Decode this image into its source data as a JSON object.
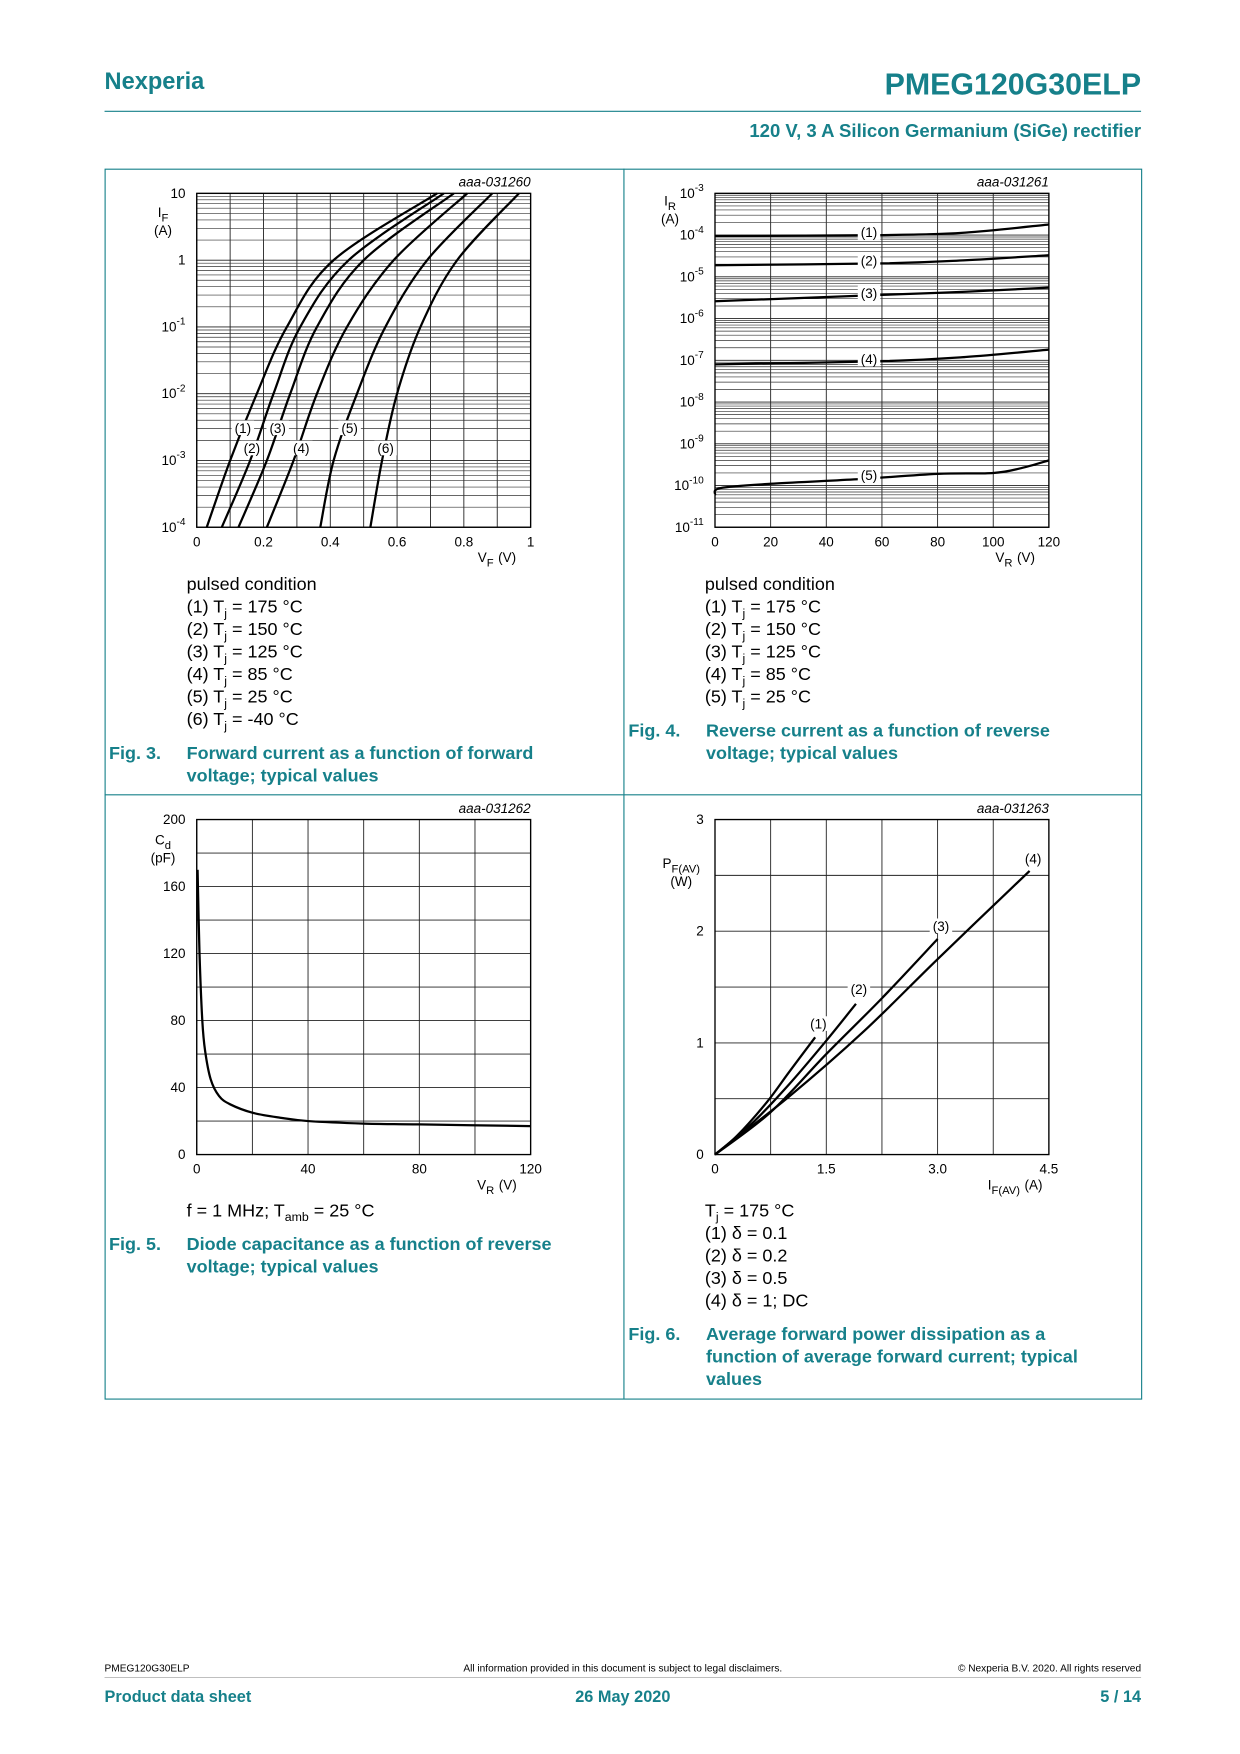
{
  "header": {
    "brand": "Nexperia",
    "product": "PMEG120G30ELP",
    "subtitle": "120 V, 3 A Silicon Germanium (SiGe) rectifier"
  },
  "chart_data": [
    {
      "type": "line",
      "id": "aaa-031260",
      "figure": "Fig. 3.",
      "caption": "Forward current as a function of forward voltage; typical values",
      "notes": [
        "pulsed condition",
        "(1) Tj = 175 °C",
        "(2) Tj = 150 °C",
        "(3) Tj = 125 °C",
        "(4) Tj = 85 °C",
        "(5) Tj = 25 °C",
        "(6) Tj = -40 °C"
      ],
      "x_label": {
        "symbol": "V",
        "sub": "F",
        "unit": "(V)"
      },
      "y_label": {
        "symbol": "I",
        "sub": "F",
        "unit": "(A)"
      },
      "xlim": [
        0,
        1
      ],
      "ylim": [
        0.0001,
        10
      ],
      "yscale": "log",
      "grid": true,
      "x_minor_grid": true,
      "y_minor_grid": true,
      "color": "#000000",
      "xticks": [
        0,
        0.2,
        0.4,
        0.6,
        0.8,
        1
      ],
      "yticks": [
        {
          "value": 0.0001,
          "label": "10-4"
        },
        {
          "value": 0.001,
          "label": "10-3"
        },
        {
          "value": 0.01,
          "label": "10-2"
        },
        {
          "value": 0.1,
          "label": "10-1"
        },
        1,
        10
      ],
      "series": [
        {
          "name": "(1)",
          "x": [
            0.03,
            0.1,
            0.18,
            0.27,
            0.41,
            0.72
          ],
          "values": [
            0.0001,
            0.001,
            0.01,
            0.1,
            1,
            10
          ]
        },
        {
          "name": "(2)",
          "x": [
            0.075,
            0.16,
            0.23,
            0.31,
            0.455,
            0.74
          ],
          "values": [
            0.0001,
            0.001,
            0.01,
            0.1,
            1,
            10
          ]
        },
        {
          "name": "(3)",
          "x": [
            0.125,
            0.21,
            0.28,
            0.36,
            0.5,
            0.77
          ],
          "values": [
            0.0001,
            0.001,
            0.01,
            0.1,
            1,
            10
          ]
        },
        {
          "name": "(4)",
          "x": [
            0.21,
            0.29,
            0.36,
            0.45,
            0.59,
            0.81
          ],
          "values": [
            0.0001,
            0.001,
            0.01,
            0.1,
            1,
            10
          ]
        },
        {
          "name": "(5)",
          "x": [
            0.37,
            0.41,
            0.48,
            0.565,
            0.69,
            0.885
          ],
          "values": [
            0.0001,
            0.001,
            0.01,
            0.1,
            1,
            10
          ]
        },
        {
          "name": "(6)",
          "x": [
            0.52,
            0.555,
            0.6,
            0.67,
            0.78,
            0.965
          ],
          "values": [
            0.0001,
            0.001,
            0.01,
            0.1,
            1,
            10
          ]
        }
      ]
    },
    {
      "type": "line",
      "id": "aaa-031261",
      "figure": "Fig. 4.",
      "caption": "Reverse current as a function of reverse voltage; typical values",
      "notes": [
        "pulsed condition",
        "(1) Tj = 175 °C",
        "(2) Tj = 150 °C",
        "(3) Tj = 125 °C",
        "(4) Tj = 85 °C",
        "(5) Tj = 25 °C"
      ],
      "x_label": {
        "symbol": "V",
        "sub": "R",
        "unit": "(V)"
      },
      "y_label": {
        "symbol": "I",
        "sub": "R",
        "unit": "(A)"
      },
      "xlim": [
        0,
        120
      ],
      "ylim": [
        1e-11,
        0.001
      ],
      "yscale": "log",
      "grid": true,
      "x_minor_grid": false,
      "y_minor_grid": true,
      "color": "#000000",
      "xticks": [
        0,
        20,
        40,
        60,
        80,
        100,
        120
      ],
      "yticks": [
        {
          "value": 1e-11,
          "label": "10-11"
        },
        {
          "value": 1e-10,
          "label": "10-10"
        },
        {
          "value": 1e-09,
          "label": "10-9"
        },
        {
          "value": 1e-08,
          "label": "10-8"
        },
        {
          "value": 1e-07,
          "label": "10-7"
        },
        {
          "value": 1e-06,
          "label": "10-6"
        },
        {
          "value": 1e-05,
          "label": "10-5"
        },
        {
          "value": 0.0001,
          "label": "10-4"
        },
        {
          "value": 0.001,
          "label": "10-3"
        }
      ],
      "series": [
        {
          "name": "(1)",
          "x": [
            0,
            60,
            90,
            120
          ],
          "values": [
            9.5e-05,
            0.0001,
            0.000115,
            0.00018
          ]
        },
        {
          "name": "(2)",
          "x": [
            0,
            60,
            90,
            120
          ],
          "values": [
            1.9e-05,
            2.1e-05,
            2.5e-05,
            3.3e-05
          ]
        },
        {
          "name": "(3)",
          "x": [
            0,
            60,
            90,
            120
          ],
          "values": [
            2.6e-06,
            3.7e-06,
            4.4e-06,
            5.5e-06
          ]
        },
        {
          "name": "(4)",
          "x": [
            0,
            60,
            90,
            120
          ],
          "values": [
            8e-08,
            9.5e-08,
            1.2e-07,
            1.8e-07
          ]
        },
        {
          "name": "(5)",
          "x": [
            0,
            2,
            20,
            50,
            80,
            100,
            110,
            120
          ],
          "values": [
            6e-11,
            8.7e-11,
            1.1e-10,
            1.4e-10,
            1.9e-10,
            2e-10,
            2.6e-10,
            4e-10
          ]
        }
      ]
    },
    {
      "type": "line",
      "id": "aaa-031262",
      "figure": "Fig. 5.",
      "caption": "Diode capacitance as a function of reverse voltage; typical values",
      "notes": [
        "f = 1 MHz; Tamb = 25 °C"
      ],
      "x_label": {
        "symbol": "V",
        "sub": "R",
        "unit": "(V)"
      },
      "y_label": {
        "symbol": "C",
        "sub": "d",
        "unit": "(pF)"
      },
      "xlim": [
        0,
        120
      ],
      "ylim": [
        0,
        200
      ],
      "yscale": "linear",
      "grid": true,
      "x_minor_grid": true,
      "y_minor_grid": true,
      "color": "#000000",
      "xticks": [
        0,
        40,
        80,
        120
      ],
      "yticks": [
        0,
        40,
        80,
        120,
        160,
        200
      ],
      "series": [
        {
          "name": "Cd",
          "x": [
            0.3,
            1,
            2,
            3,
            5,
            8,
            12,
            20,
            30,
            40,
            60,
            80,
            120
          ],
          "values": [
            170,
            120,
            80,
            62,
            45,
            35,
            30,
            25,
            22,
            20,
            18.5,
            18,
            17
          ]
        }
      ]
    },
    {
      "type": "line",
      "id": "aaa-031263",
      "figure": "Fig. 6.",
      "caption": "Average forward power dissipation as a function of average forward current; typical values",
      "notes": [
        "Tj = 175 °C",
        "(1) δ = 0.1",
        "(2) δ = 0.2",
        "(3) δ = 0.5",
        "(4) δ = 1; DC"
      ],
      "x_label": {
        "symbol": "I",
        "sub": "F(AV)",
        "unit": "(A)"
      },
      "y_label": {
        "symbol": "P",
        "sub": "F(AV)",
        "unit": "(W)"
      },
      "xlim": [
        0,
        4.5
      ],
      "ylim": [
        0,
        3
      ],
      "yscale": "linear",
      "grid": true,
      "x_minor_grid": true,
      "y_minor_grid": true,
      "color": "#000000",
      "xticks": [
        0,
        1.5,
        {
          "value": 3,
          "label": "3.0"
        },
        4.5
      ],
      "yticks": [
        0,
        1,
        2,
        3
      ],
      "series": [
        {
          "name": "(1)",
          "x": [
            0,
            0.3,
            0.7,
            1.0,
            1.35
          ],
          "values": [
            0,
            0.17,
            0.47,
            0.74,
            1.05
          ]
        },
        {
          "name": "(2)",
          "x": [
            0,
            0.5,
            1.0,
            1.5,
            1.9
          ],
          "values": [
            0,
            0.28,
            0.63,
            1.02,
            1.35
          ]
        },
        {
          "name": "(3)",
          "x": [
            0,
            0.75,
            1.5,
            2.25,
            3.0
          ],
          "values": [
            0,
            0.38,
            0.9,
            1.4,
            1.93
          ]
        },
        {
          "name": "(4)",
          "x": [
            0,
            1,
            2,
            3,
            4.24
          ],
          "values": [
            0,
            0.52,
            1.1,
            1.75,
            2.54
          ]
        }
      ]
    }
  ],
  "footer": {
    "product": "PMEG120G30ELP",
    "disclaimer": "All information provided in this document is subject to legal disclaimers.",
    "copyright": "© Nexperia B.V. 2020. All rights reserved",
    "doc_type": "Product data sheet",
    "date": "26 May 2020",
    "page": "5 / 14"
  }
}
